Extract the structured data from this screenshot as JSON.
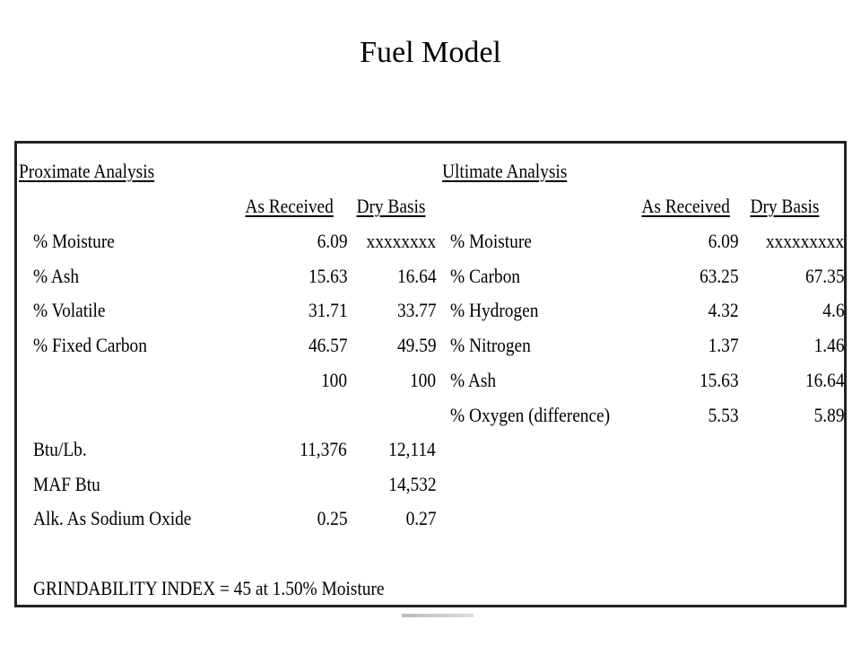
{
  "title": "Fuel Model",
  "proximate": {
    "heading": "Proximate Analysis",
    "col_as_received": "As Received",
    "col_dry_basis": "Dry Basis",
    "rows": [
      {
        "label": "% Moisture",
        "as_received": "6.09",
        "dry_basis": "xxxxxxxx"
      },
      {
        "label": "% Ash",
        "as_received": "15.63",
        "dry_basis": "16.64"
      },
      {
        "label": "% Volatile",
        "as_received": "31.71",
        "dry_basis": "33.77"
      },
      {
        "label": "% Fixed Carbon",
        "as_received": "46.57",
        "dry_basis": "49.59"
      },
      {
        "label": "",
        "as_received": "100",
        "dry_basis": "100"
      }
    ],
    "extra_rows": [
      {
        "label": "Btu/Lb.",
        "as_received": "11,376",
        "dry_basis": "12,114"
      },
      {
        "label": "MAF Btu",
        "as_received": "",
        "dry_basis": "14,532"
      },
      {
        "label": "Alk. As Sodium Oxide",
        "as_received": "0.25",
        "dry_basis": "0.27"
      }
    ]
  },
  "ultimate": {
    "heading": "Ultimate Analysis",
    "col_as_received": "As Received",
    "col_dry_basis": "Dry Basis",
    "rows": [
      {
        "label": "% Moisture",
        "as_received": "6.09",
        "dry_basis": "xxxxxxxxx"
      },
      {
        "label": "% Carbon",
        "as_received": "63.25",
        "dry_basis": "67.35"
      },
      {
        "label": "% Hydrogen",
        "as_received": "4.32",
        "dry_basis": "4.6"
      },
      {
        "label": "% Nitrogen",
        "as_received": "1.37",
        "dry_basis": "1.46"
      },
      {
        "label": "% Ash",
        "as_received": "15.63",
        "dry_basis": "16.64"
      },
      {
        "label": "% Oxygen (difference)",
        "as_received": "5.53",
        "dry_basis": "5.89"
      }
    ]
  },
  "grindability": "GRINDABILITY INDEX = 45 at 1.50% Moisture"
}
